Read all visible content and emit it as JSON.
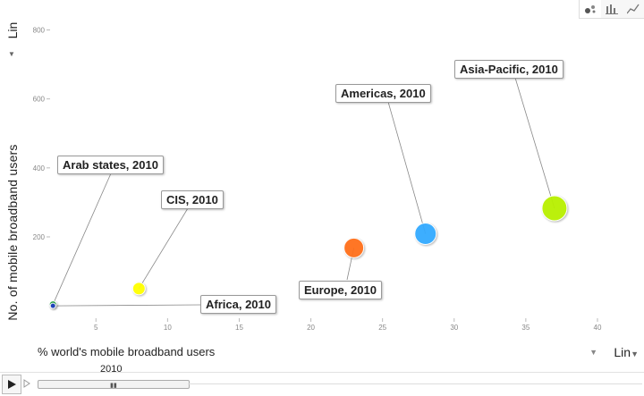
{
  "toolbar": {
    "icons": [
      "bubble-chart-icon",
      "bar-chart-icon",
      "line-chart-icon"
    ]
  },
  "y_axis": {
    "label": "No. of mobile broadband users",
    "scale": "Lin"
  },
  "x_axis": {
    "label": "% world's mobile broadband users",
    "scale": "Lin"
  },
  "timeline": {
    "year": "2010"
  },
  "chart_data": {
    "type": "scatter",
    "xlabel": "% world's mobile broadband users",
    "ylabel": "No. of mobile broadband users",
    "xlim": [
      1.8,
      41.5
    ],
    "ylim": [
      -10,
      835
    ],
    "x_ticks": [
      5,
      10,
      15,
      20,
      25,
      30,
      35,
      40
    ],
    "y_ticks": [
      200,
      400,
      600,
      800
    ],
    "points": [
      {
        "label": "Arab states, 2010",
        "x": 2.0,
        "y": 4,
        "size": 4,
        "color": "#1a9c3a"
      },
      {
        "label": "Africa, 2010",
        "x": 2.0,
        "y": 0,
        "size": 3,
        "color": "#1f3fbf"
      },
      {
        "label": "CIS, 2010",
        "x": 8.0,
        "y": 50,
        "size": 7,
        "color": "#ffff00"
      },
      {
        "label": "Europe, 2010",
        "x": 23.0,
        "y": 168,
        "size": 11,
        "color": "#ff6f1a"
      },
      {
        "label": "Americas, 2010",
        "x": 28.0,
        "y": 209,
        "size": 12,
        "color": "#33aaff"
      },
      {
        "label": "Asia-Pacific, 2010",
        "x": 37.0,
        "y": 283,
        "size": 14,
        "color": "#b8f000"
      }
    ]
  }
}
